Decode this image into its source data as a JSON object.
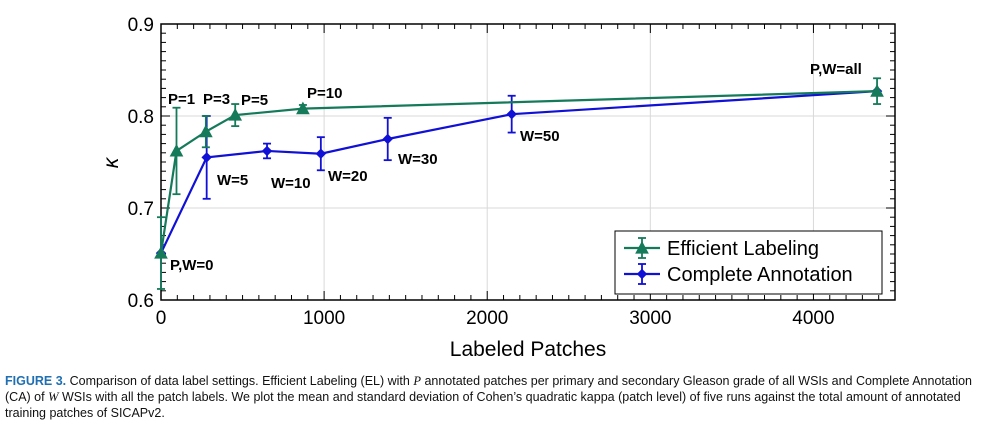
{
  "chart_data": {
    "type": "line",
    "xlabel": "Labeled Patches",
    "ylabel": "κ",
    "xlim": [
      0,
      4500
    ],
    "ylim": [
      0.6,
      0.9
    ],
    "x_ticks": [
      0,
      1000,
      2000,
      3000,
      4000
    ],
    "y_ticks": [
      0.6,
      0.7,
      0.8,
      0.9
    ],
    "x_tick_labels": [
      "0",
      "1000",
      "2000",
      "3000",
      "4000"
    ],
    "y_tick_labels": [
      "0.6",
      "0.7",
      "0.8",
      "0.9"
    ],
    "grid": true,
    "legend_position": "bottom-right",
    "series": [
      {
        "name": "Efficient Labeling",
        "color": "#147a5a",
        "marker": "triangle",
        "points": [
          {
            "x": 0,
            "y": 0.651,
            "err": 0.039
          },
          {
            "x": 95,
            "y": 0.762,
            "err": 0.047
          },
          {
            "x": 275,
            "y": 0.783,
            "err": 0.017
          },
          {
            "x": 455,
            "y": 0.801,
            "err": 0.012
          },
          {
            "x": 870,
            "y": 0.808,
            "err": 0.004
          },
          {
            "x": 4390,
            "y": 0.827,
            "err": 0.014
          }
        ]
      },
      {
        "name": "Complete Annotation",
        "color": "#1010d6",
        "marker": "diamond",
        "points": [
          {
            "x": 0,
            "y": 0.651,
            "err": 0.0
          },
          {
            "x": 280,
            "y": 0.755,
            "err": 0.045
          },
          {
            "x": 650,
            "y": 0.762,
            "err": 0.008
          },
          {
            "x": 980,
            "y": 0.759,
            "err": 0.018
          },
          {
            "x": 1390,
            "y": 0.775,
            "err": 0.023
          },
          {
            "x": 2150,
            "y": 0.802,
            "err": 0.02
          },
          {
            "x": 4390,
            "y": 0.827,
            "err": 0.0
          }
        ]
      }
    ],
    "annotations": [
      "P=1",
      "P=3",
      "P=5",
      "P=10",
      "P,W=all",
      "P,W=0",
      "W=5",
      "W=10",
      "W=20",
      "W=30",
      "W=50"
    ]
  },
  "caption": {
    "label": "FIGURE 3.",
    "parts": [
      "Comparison of data label settings. Efficient Labeling (EL) with ",
      "P",
      " annotated patches per primary and secondary Gleason grade of all WSIs and Complete Annotation (CA) of ",
      "W",
      " WSIs with all the patch labels. We plot the mean and standard deviation of Cohen’s quadratic kappa (patch level) of five runs against the total amount of annotated training patches of SICAPv2."
    ]
  }
}
